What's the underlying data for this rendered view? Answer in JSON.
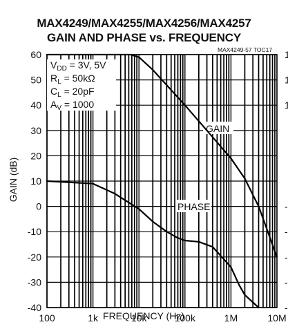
{
  "chart_data": {
    "type": "line",
    "title": "MAX4249/MAX4255/MAX4256/MAX4257",
    "subtitle": "GAIN AND PHASE vs. FREQUENCY",
    "code": "MAX4249-57 TOC17",
    "xlabel": "FREQUENCY (Hz)",
    "ylabel": "GAIN (dB)",
    "x_scale": "log",
    "xlim": [
      100,
      10000000
    ],
    "ylim": [
      -40,
      60
    ],
    "x_ticks": [
      "100",
      "1k",
      "10k",
      "100k",
      "1M",
      "10M"
    ],
    "x_tick_values": [
      100,
      1000,
      10000,
      100000,
      1000000,
      10000000
    ],
    "y_ticks": [
      "60",
      "50",
      "40",
      "30",
      "20",
      "10",
      "0",
      "-10",
      "-20",
      "-30",
      "-40"
    ],
    "y_tick_values": [
      60,
      50,
      40,
      30,
      20,
      10,
      0,
      -10,
      -20,
      -30,
      -40
    ],
    "right_ticks": [
      "1",
      "1",
      "1",
      "-",
      "-",
      "-1",
      "-1",
      "-1"
    ],
    "grid": true,
    "conditions": {
      "vdd_main": "V",
      "vdd_sub": "DD",
      "vdd_rest": " = 3V, 5V",
      "rl_main": "R",
      "rl_sub": "L",
      "rl_rest": " = 50kΩ",
      "cl_main": "C",
      "cl_sub": "L",
      "cl_rest": " = 20pF",
      "av_main": "A",
      "av_sub": "V",
      "av_rest": " = 1000"
    },
    "series": [
      {
        "name": "GAIN",
        "x": [
          100,
          1000,
          4000,
          6500,
          10000,
          20000,
          50000,
          100000,
          300000,
          1000000,
          2000000,
          4000000,
          10000000
        ],
        "y": [
          60,
          60,
          60,
          60,
          59,
          54,
          46,
          40,
          30,
          19,
          11,
          0,
          -20
        ]
      },
      {
        "name": "PHASE",
        "x": [
          100,
          1000,
          3000,
          10000,
          20000,
          40000,
          70000,
          100000,
          200000,
          400000,
          1000000,
          1500000,
          2000000,
          4000000
        ],
        "y": [
          10,
          9,
          5,
          -1,
          -6,
          -10,
          -12.5,
          -13.5,
          -14,
          -16,
          -24,
          -31,
          -35,
          -40
        ]
      }
    ]
  }
}
